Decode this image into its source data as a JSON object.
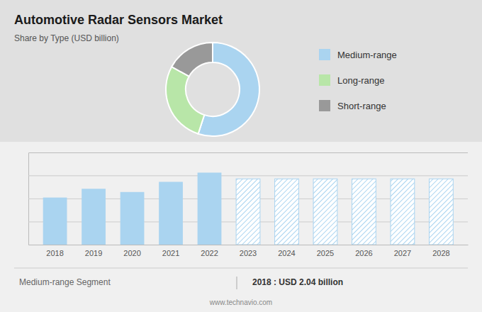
{
  "chart_data": [
    {
      "type": "pie",
      "title": "Automotive Radar Sensors Market",
      "subtitle": "Share by Type (USD billion)",
      "categories": [
        "Medium-range",
        "Long-range",
        "Short-range"
      ],
      "values": [
        55,
        28,
        17
      ],
      "colors": [
        "#aad4f0",
        "#b8e6a8",
        "#999999"
      ],
      "legend": "right",
      "annotations": [
        "Medium-range Segment",
        "2018 : USD 2.04 billion",
        "www.technavio.com"
      ]
    },
    {
      "type": "bar",
      "categories": [
        "2018",
        "2019",
        "2020",
        "2021",
        "2022",
        "2023",
        "2024",
        "2025",
        "2026",
        "2027",
        "2028"
      ],
      "series": [
        {
          "color": "#aad4f0",
          "values": [
            2.04,
            2.42,
            2.28,
            2.72,
            3.12,
            null,
            null,
            null,
            null,
            null,
            null
          ]
        },
        {
          "color": "#aad4f0",
          "line_style": "hatched",
          "values": [
            null,
            null,
            null,
            null,
            null,
            2.85,
            2.85,
            2.85,
            2.85,
            2.85,
            2.85
          ]
        }
      ],
      "ylim": [
        0,
        3.9936
      ],
      "yticks": [
        1,
        2,
        3
      ],
      "grid": true,
      "tick_labels": "x"
    }
  ]
}
